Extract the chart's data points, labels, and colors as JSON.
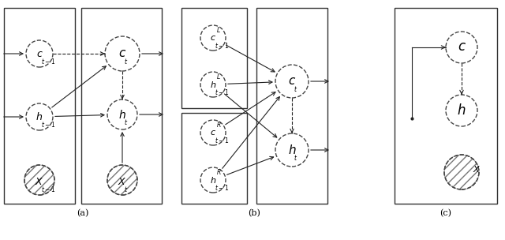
{
  "fig_width": 6.4,
  "fig_height": 3.04,
  "bg_color": "#ffffff",
  "label_a": "(a)",
  "label_b": "(b)",
  "label_c": "(c)",
  "edge_color": "#444444",
  "arrow_color": "#222222"
}
